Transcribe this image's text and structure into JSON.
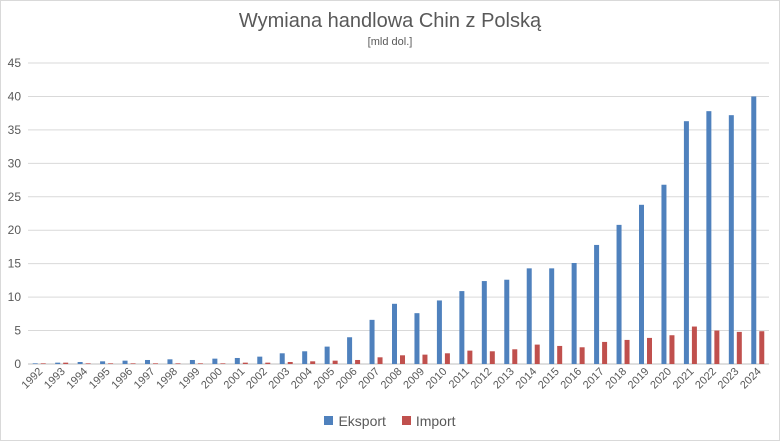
{
  "chart_data": {
    "type": "bar",
    "title": "Wymiana handlowa Chin z Polską",
    "subtitle": "[mld dol.]",
    "categories": [
      "1992",
      "1993",
      "1994",
      "1995",
      "1996",
      "1997",
      "1998",
      "1999",
      "2000",
      "2001",
      "2002",
      "2003",
      "2004",
      "2005",
      "2006",
      "2007",
      "2008",
      "2009",
      "2010",
      "2011",
      "2012",
      "2013",
      "2014",
      "2015",
      "2016",
      "2017",
      "2018",
      "2019",
      "2020",
      "2021",
      "2022",
      "2023",
      "2024"
    ],
    "series": [
      {
        "name": "Eksport",
        "color": "#4f81bd",
        "values": [
          0.1,
          0.2,
          0.3,
          0.4,
          0.5,
          0.6,
          0.7,
          0.6,
          0.8,
          0.9,
          1.1,
          1.6,
          1.9,
          2.6,
          4.0,
          6.6,
          9.0,
          7.6,
          9.5,
          10.9,
          12.4,
          12.6,
          14.3,
          14.3,
          15.1,
          17.8,
          20.8,
          23.8,
          26.8,
          36.3,
          37.8,
          37.2,
          40.0
        ]
      },
      {
        "name": "Import",
        "color": "#c0504d",
        "values": [
          0.1,
          0.2,
          0.1,
          0.1,
          0.1,
          0.1,
          0.1,
          0.1,
          0.1,
          0.2,
          0.2,
          0.3,
          0.4,
          0.5,
          0.6,
          1.0,
          1.3,
          1.4,
          1.6,
          2.0,
          1.9,
          2.2,
          2.9,
          2.7,
          2.5,
          3.3,
          3.6,
          3.9,
          4.3,
          5.6,
          5.0,
          4.8,
          4.9
        ]
      }
    ],
    "yticks": [
      0,
      5,
      10,
      15,
      20,
      25,
      30,
      35,
      40,
      45
    ],
    "ylim": [
      0,
      45
    ],
    "grid": true,
    "legend_position": "bottom"
  }
}
